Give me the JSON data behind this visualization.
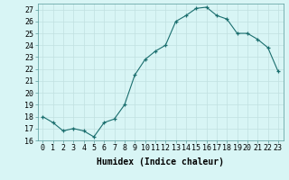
{
  "x": [
    0,
    1,
    2,
    3,
    4,
    5,
    6,
    7,
    8,
    9,
    10,
    11,
    12,
    13,
    14,
    15,
    16,
    17,
    18,
    19,
    20,
    21,
    22,
    23
  ],
  "y": [
    18,
    17.5,
    16.8,
    17.0,
    16.8,
    16.3,
    17.5,
    17.8,
    19.0,
    21.5,
    22.8,
    23.5,
    24.0,
    26.0,
    26.5,
    27.1,
    27.2,
    26.5,
    26.2,
    25.0,
    25.0,
    24.5,
    23.8,
    21.8
  ],
  "xlabel": "Humidex (Indice chaleur)",
  "xlim": [
    -0.5,
    23.5
  ],
  "ylim": [
    16,
    27.5
  ],
  "yticks": [
    16,
    17,
    18,
    19,
    20,
    21,
    22,
    23,
    24,
    25,
    26,
    27
  ],
  "xticks": [
    0,
    1,
    2,
    3,
    4,
    5,
    6,
    7,
    8,
    9,
    10,
    11,
    12,
    13,
    14,
    15,
    16,
    17,
    18,
    19,
    20,
    21,
    22,
    23
  ],
  "line_color": "#1a6e6e",
  "marker_color": "#1a6e6e",
  "bg_color": "#d8f5f5",
  "grid_color": "#c0e0e0",
  "label_fontsize": 7,
  "tick_fontsize": 6
}
